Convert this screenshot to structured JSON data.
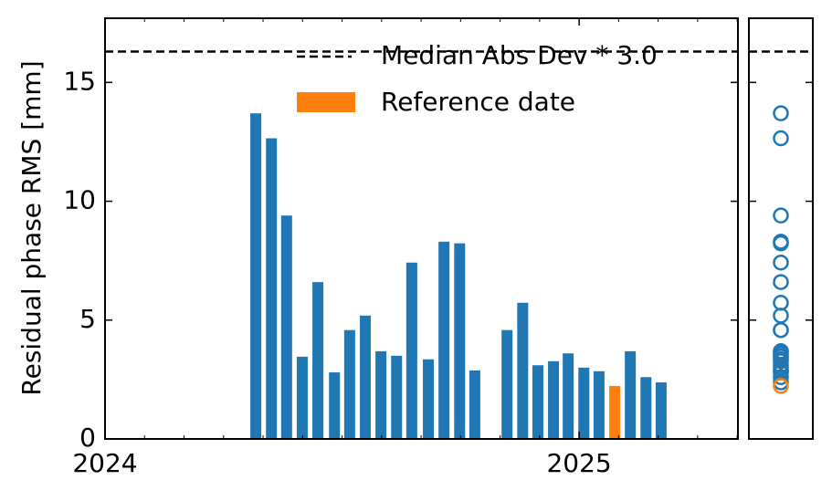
{
  "chart_data": {
    "type": "bar",
    "ylabel": "Residual phase RMS [mm]",
    "xlim": [
      2024,
      2025.335
    ],
    "xticks": [
      2024,
      2025
    ],
    "ylim": [
      0,
      17.7
    ],
    "yticks": [
      0,
      5,
      10,
      15
    ],
    "series": [
      {
        "color": "#1f77b4",
        "x": [
          2024.318,
          2024.351,
          2024.383,
          2024.416,
          2024.449,
          2024.484,
          2024.516,
          2024.549,
          2024.582,
          2024.615,
          2024.647,
          2024.682,
          2024.715,
          2024.748,
          2024.78,
          2024.848,
          2024.881,
          2024.913,
          2024.946,
          2024.977,
          2025.01,
          2025.042,
          2025.108,
          2025.141,
          2025.173
        ],
        "values": [
          13.7,
          12.65,
          9.4,
          3.46,
          6.6,
          2.8,
          4.58,
          5.19,
          3.69,
          3.5,
          7.42,
          3.35,
          8.3,
          8.23,
          2.88,
          4.58,
          5.73,
          3.1,
          3.27,
          3.6,
          3.0,
          2.85,
          3.69,
          2.6,
          2.38
        ]
      },
      {
        "name": "Reference date",
        "color": "#ff7f0e",
        "x": [
          2025.075
        ],
        "values": [
          2.23
        ]
      }
    ],
    "threshold": {
      "name": "Median Abs Dev * 3.0",
      "value": 16.3,
      "color": "#000000"
    },
    "legend": "upper right"
  }
}
